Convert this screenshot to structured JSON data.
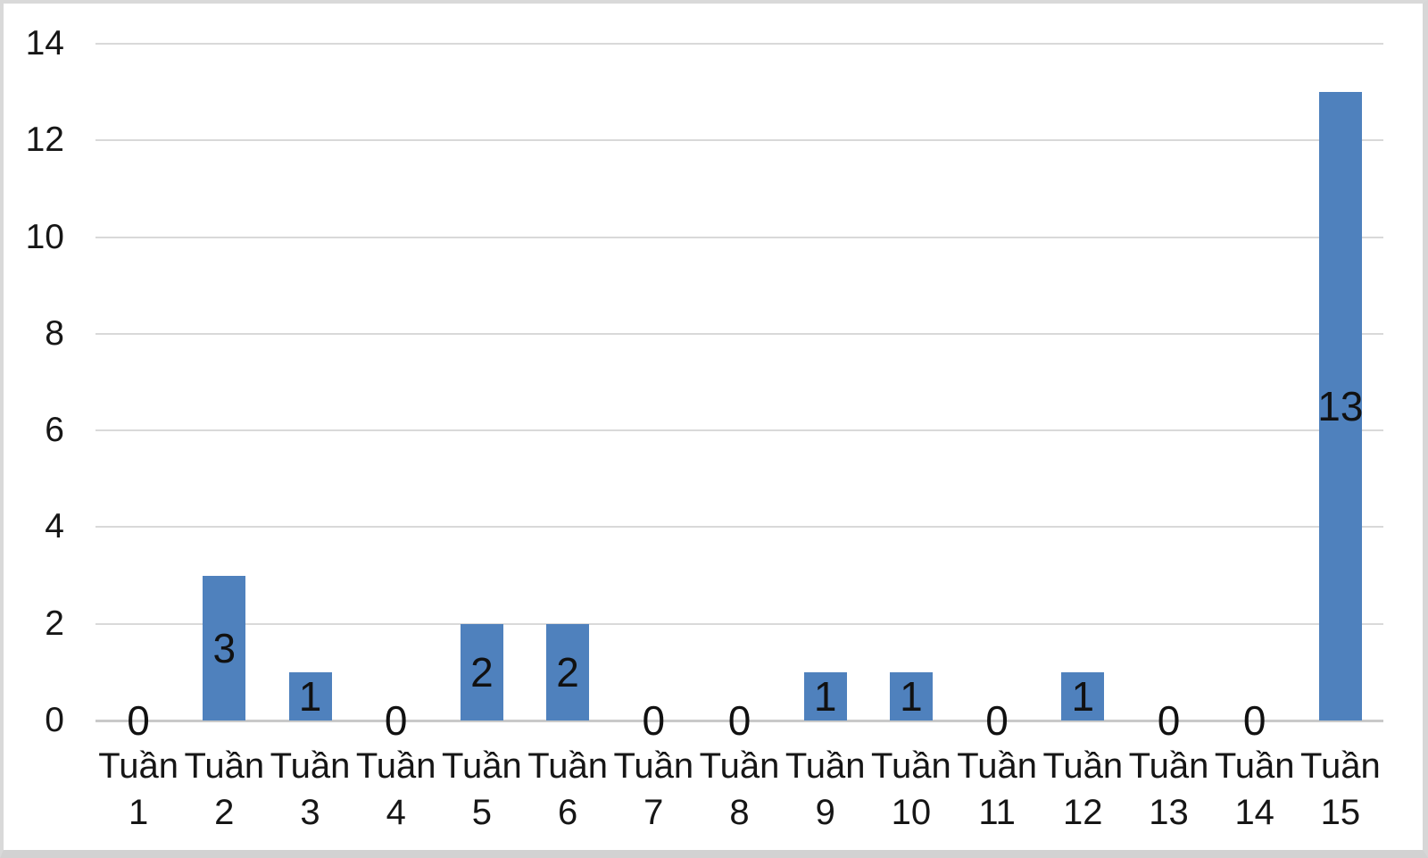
{
  "chart_data": {
    "type": "bar",
    "title": "",
    "xlabel": "",
    "ylabel": "",
    "categories": [
      "Tuần 1",
      "Tuần 2",
      "Tuần 3",
      "Tuần 4",
      "Tuần 5",
      "Tuần 6",
      "Tuần 7",
      "Tuần 8",
      "Tuần 9",
      "Tuần 10",
      "Tuần 11",
      "Tuần 12",
      "Tuần 13",
      "Tuần 14",
      "Tuần 15"
    ],
    "values": [
      0,
      3,
      1,
      0,
      2,
      2,
      0,
      0,
      1,
      1,
      0,
      1,
      0,
      0,
      13
    ],
    "data_labels": [
      "0",
      "3",
      "1",
      "0",
      "2",
      "2",
      "0",
      "0",
      "1",
      "1",
      "0",
      "1",
      "0",
      "0",
      "13"
    ],
    "y_ticks": [
      "0",
      "2",
      "4",
      "6",
      "8",
      "10",
      "12",
      "14"
    ],
    "ylim": [
      0,
      14
    ],
    "grid": "horizontal",
    "legend": "none",
    "data_label_position": "center",
    "colors": {
      "bar": "#4f81bd",
      "gridline": "#d9d9d9",
      "axis_line": "#c9c9c9",
      "text": "#161616",
      "frame_border": "#d9d9d9",
      "background": "#ffffff"
    }
  }
}
